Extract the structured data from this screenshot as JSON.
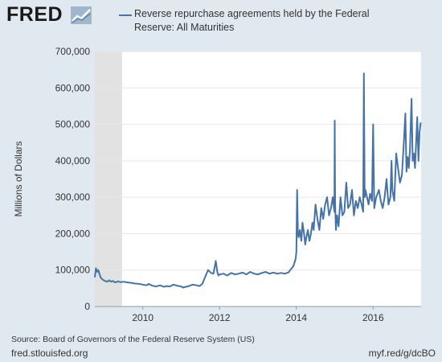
{
  "header": {
    "logo_text": "FRED",
    "logo_icon": "fred-chart-icon"
  },
  "colors": {
    "series": "#4572a7",
    "recession": "#e2e2e2",
    "background": "#e1e9f0",
    "plot_bg": "#ffffff",
    "grid": "#e6e6e6"
  },
  "chart_data": {
    "type": "line",
    "title": "",
    "legend": [
      "Reverse repurchase agreements held by the Federal",
      "Reserve: All Maturities"
    ],
    "legend_position": "top",
    "ylabel": "Millions of Dollars",
    "xlabel": "",
    "ylim": [
      0,
      700000
    ],
    "xlim": [
      2008.75,
      2017.25
    ],
    "yticks": [
      0,
      100000,
      200000,
      300000,
      400000,
      500000,
      600000,
      700000
    ],
    "ytick_labels": [
      "0",
      "100,000",
      "200,000",
      "300,000",
      "400,000",
      "500,000",
      "600,000",
      "700,000"
    ],
    "xticks": [
      2010,
      2012,
      2014,
      2016
    ],
    "xtick_labels": [
      "2010",
      "2012",
      "2014",
      "2016"
    ],
    "grid": "horizontal",
    "recessions": [
      [
        2008.75,
        2009.46
      ]
    ],
    "series": [
      {
        "name": "Reverse repurchase agreements held by the Federal Reserve: All Maturities",
        "x": [
          2008.75,
          2008.78,
          2008.81,
          2008.84,
          2008.87,
          2008.9,
          2008.94,
          2008.98,
          2009.02,
          2009.07,
          2009.12,
          2009.17,
          2009.22,
          2009.28,
          2009.35,
          2009.42,
          2009.5,
          2009.6,
          2009.7,
          2009.8,
          2009.9,
          2010.0,
          2010.1,
          2010.15,
          2010.25,
          2010.35,
          2010.45,
          2010.55,
          2010.62,
          2010.7,
          2010.8,
          2010.9,
          2011.0,
          2011.05,
          2011.12,
          2011.2,
          2011.3,
          2011.4,
          2011.48,
          2011.55,
          2011.62,
          2011.7,
          2011.78,
          2011.84,
          2011.9,
          2011.94,
          2011.97,
          2012.0,
          2012.1,
          2012.2,
          2012.3,
          2012.4,
          2012.5,
          2012.6,
          2012.7,
          2012.8,
          2012.9,
          2013.0,
          2013.1,
          2013.2,
          2013.3,
          2013.4,
          2013.5,
          2013.6,
          2013.7,
          2013.8,
          2013.84,
          2013.88,
          2013.92,
          2013.95,
          2013.98,
          2014.0,
          2014.02,
          2014.04,
          2014.06,
          2014.09,
          2014.13,
          2014.16,
          2014.2,
          2014.23,
          2014.26,
          2014.3,
          2014.34,
          2014.38,
          2014.42,
          2014.45,
          2014.5,
          2014.55,
          2014.6,
          2014.65,
          2014.7,
          2014.75,
          2014.8,
          2014.85,
          2014.9,
          2014.95,
          2014.99,
          2015.0,
          2015.01,
          2015.03,
          2015.06,
          2015.1,
          2015.15,
          2015.2,
          2015.25,
          2015.3,
          2015.35,
          2015.4,
          2015.45,
          2015.5,
          2015.55,
          2015.6,
          2015.65,
          2015.7,
          2015.74,
          2015.76,
          2015.78,
          2015.8,
          2015.84,
          2015.88,
          2015.92,
          2015.97,
          2016.0,
          2016.03,
          2016.08,
          2016.15,
          2016.2,
          2016.25,
          2016.3,
          2016.35,
          2016.4,
          2016.45,
          2016.48,
          2016.5,
          2016.55,
          2016.6,
          2016.65,
          2016.7,
          2016.75,
          2016.8,
          2016.84,
          2016.87,
          2016.9,
          2016.93,
          2016.96,
          2017.0,
          2017.03,
          2017.06,
          2017.09,
          2017.12,
          2017.15,
          2017.18,
          2017.21,
          2017.24
        ],
        "values": [
          80000,
          105000,
          95000,
          100000,
          90000,
          80000,
          75000,
          72000,
          70000,
          68000,
          72000,
          68000,
          70000,
          66000,
          69000,
          67000,
          68000,
          66000,
          65000,
          63000,
          62000,
          60000,
          58000,
          62000,
          57000,
          55000,
          58000,
          54000,
          56000,
          55000,
          60000,
          57000,
          55000,
          52000,
          54000,
          56000,
          60000,
          58000,
          56000,
          62000,
          80000,
          100000,
          92000,
          90000,
          125000,
          95000,
          85000,
          88000,
          90000,
          85000,
          92000,
          88000,
          90000,
          93000,
          88000,
          95000,
          90000,
          88000,
          92000,
          95000,
          90000,
          93000,
          90000,
          92000,
          90000,
          94000,
          100000,
          105000,
          110000,
          120000,
          130000,
          150000,
          320000,
          200000,
          190000,
          210000,
          180000,
          230000,
          200000,
          170000,
          190000,
          210000,
          180000,
          200000,
          230000,
          210000,
          280000,
          240000,
          210000,
          270000,
          240000,
          280000,
          300000,
          250000,
          270000,
          300000,
          260000,
          510000,
          280000,
          210000,
          250000,
          220000,
          300000,
          250000,
          260000,
          340000,
          270000,
          280000,
          320000,
          250000,
          290000,
          270000,
          300000,
          280000,
          260000,
          640000,
          300000,
          320000,
          300000,
          280000,
          310000,
          290000,
          500000,
          270000,
          300000,
          320000,
          290000,
          270000,
          300000,
          350000,
          280000,
          300000,
          400000,
          320000,
          290000,
          420000,
          380000,
          340000,
          360000,
          450000,
          530000,
          370000,
          410000,
          380000,
          430000,
          570000,
          400000,
          420000,
          380000,
          450000,
          520000,
          400000,
          480000,
          505000
        ]
      }
    ]
  },
  "footer": {
    "source": "Source: Board of Governors of the Federal Reserve System (US)",
    "site": "fred.stlouisfed.org",
    "shortlink": "myf.red/g/dcBO"
  }
}
